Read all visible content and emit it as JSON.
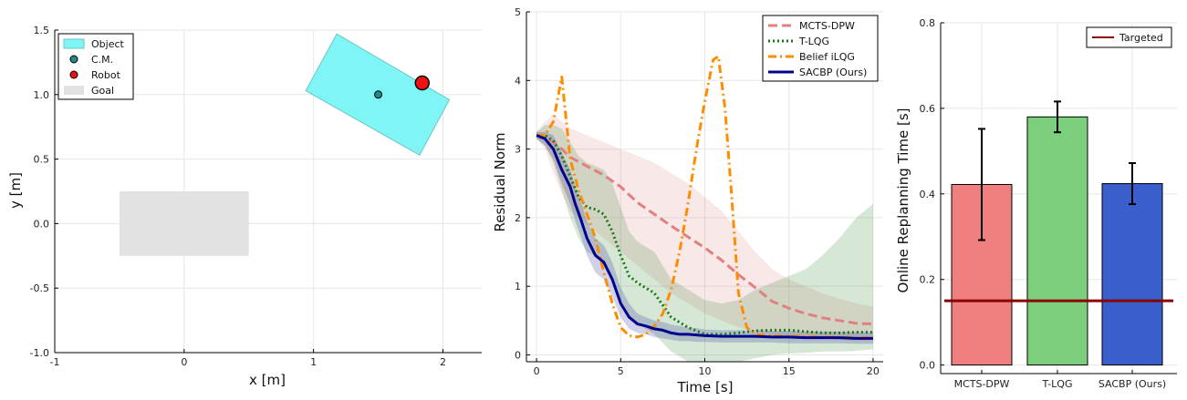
{
  "chart_data": [
    {
      "type": "scatter",
      "xlabel": "x [m]",
      "ylabel": "y [m]",
      "xlim": [
        -1,
        2.3
      ],
      "ylim": [
        -1.0,
        1.5
      ],
      "xticks": [
        -1,
        0,
        1,
        2
      ],
      "xtick_labels": [
        "-1",
        "0",
        "1",
        "2"
      ],
      "yticks": [
        -1.0,
        -0.5,
        0.0,
        0.5,
        1.0,
        1.5
      ],
      "ytick_labels": [
        "-1.0",
        "-0.5",
        "0.0",
        "0.5",
        "1.0",
        "1.5"
      ],
      "grid": true,
      "legend_position": "top-left",
      "legend": [
        "Object",
        "C.M.",
        "Robot",
        "Goal"
      ],
      "object_polygon": [
        [
          1.18,
          1.47
        ],
        [
          2.05,
          0.96
        ],
        [
          1.82,
          0.53
        ],
        [
          0.94,
          1.03
        ]
      ],
      "cm_point": [
        1.5,
        1.0
      ],
      "robot_point": [
        1.84,
        1.09
      ],
      "goal_rect": {
        "x": [
          -0.5,
          0.5
        ],
        "y": [
          -0.25,
          0.25
        ]
      },
      "colors": {
        "object": "#7ff5f5",
        "object_edge": "#6fc4c4",
        "cm": "#1f8a8a",
        "robot": "#ee1111",
        "goal": "#e2e2e2"
      }
    },
    {
      "type": "line",
      "xlabel": "Time [s]",
      "ylabel": "Residual Norm",
      "xlim": [
        -0.6,
        20.6
      ],
      "ylim": [
        -0.1,
        5
      ],
      "xticks": [
        0,
        5,
        10,
        15,
        20
      ],
      "xtick_labels": [
        "0",
        "5",
        "10",
        "15",
        "20"
      ],
      "yticks": [
        0,
        1,
        2,
        3,
        4,
        5
      ],
      "ytick_labels": [
        "0",
        "1",
        "2",
        "3",
        "4",
        "5"
      ],
      "grid": true,
      "legend_position": "top-right",
      "series": [
        {
          "name": "MCTS-DPW",
          "color": "#e08080",
          "dash": "dashed",
          "x": [
            0,
            0.5,
            1,
            1.5,
            2,
            3,
            4,
            5,
            6,
            7,
            8,
            9,
            10,
            11,
            12,
            13,
            14,
            15,
            16,
            17,
            18,
            19,
            20
          ],
          "y": [
            3.2,
            3.18,
            3.1,
            3.0,
            2.88,
            2.75,
            2.62,
            2.45,
            2.22,
            2.05,
            1.88,
            1.72,
            1.56,
            1.38,
            1.17,
            0.98,
            0.78,
            0.68,
            0.6,
            0.54,
            0.5,
            0.46,
            0.45
          ],
          "lower": [
            3.15,
            3.0,
            2.65,
            2.35,
            2.1,
            1.9,
            1.7,
            1.5,
            1.3,
            1.1,
            0.9,
            0.75,
            0.6,
            0.5,
            0.4,
            0.35,
            0.3,
            0.28,
            0.26,
            0.24,
            0.22,
            0.2,
            0.2
          ],
          "upper": [
            3.25,
            3.4,
            3.5,
            3.4,
            3.3,
            3.2,
            3.1,
            3.0,
            2.9,
            2.8,
            2.65,
            2.5,
            2.3,
            2.1,
            1.8,
            1.5,
            1.25,
            1.1,
            1.0,
            0.9,
            0.82,
            0.75,
            0.7
          ]
        },
        {
          "name": "T-LQG",
          "color": "#1a7a1a",
          "dash": "dotted",
          "x": [
            0,
            0.5,
            1,
            1.5,
            2,
            2.5,
            3,
            3.5,
            4,
            4.5,
            5,
            5.5,
            6,
            7,
            8,
            9,
            10,
            11,
            12,
            13,
            14,
            15,
            16,
            17,
            18,
            19,
            20
          ],
          "y": [
            3.2,
            3.2,
            3.12,
            2.9,
            2.6,
            2.3,
            2.15,
            2.12,
            2.05,
            1.8,
            1.45,
            1.15,
            1.05,
            0.9,
            0.55,
            0.4,
            0.3,
            0.3,
            0.32,
            0.35,
            0.36,
            0.36,
            0.34,
            0.32,
            0.32,
            0.33,
            0.33
          ],
          "lower": [
            3.15,
            3.05,
            2.8,
            2.4,
            2.0,
            1.7,
            1.5,
            1.45,
            1.35,
            1.1,
            0.8,
            0.55,
            0.45,
            0.3,
            0.05,
            -0.1,
            -0.1,
            -0.1,
            -0.1,
            -0.05,
            0.0,
            0.02,
            0.03,
            0.05,
            0.05,
            0.06,
            0.08
          ],
          "upper": [
            3.25,
            3.35,
            3.35,
            3.3,
            3.1,
            2.9,
            2.8,
            2.75,
            2.7,
            2.5,
            2.15,
            1.8,
            1.65,
            1.5,
            1.1,
            0.95,
            0.8,
            0.75,
            0.8,
            0.95,
            1.05,
            1.15,
            1.25,
            1.45,
            1.7,
            2.0,
            2.2
          ]
        },
        {
          "name": "Belief iLQG",
          "color": "#ff8c00",
          "dash": "dashdot",
          "x": [
            0,
            0.5,
            1,
            1.5,
            2,
            2.5,
            3,
            3.5,
            4,
            4.5,
            5,
            5.5,
            6,
            6.5,
            7,
            7.5,
            8,
            8.5,
            9,
            9.5,
            10,
            10.5,
            10.8,
            11.2,
            11.6,
            12,
            12.5,
            13,
            14,
            15,
            16,
            17,
            18,
            19,
            20
          ],
          "y": [
            3.2,
            3.2,
            3.4,
            4.05,
            2.85,
            2.4,
            2.05,
            1.7,
            1.2,
            0.75,
            0.4,
            0.28,
            0.26,
            0.3,
            0.42,
            0.6,
            0.95,
            1.5,
            2.2,
            3.0,
            3.7,
            4.3,
            4.35,
            3.6,
            2.3,
            0.9,
            0.4,
            0.3,
            0.28,
            0.27,
            0.27,
            0.26,
            0.26,
            0.25,
            0.25
          ]
        },
        {
          "name": "SACBP (Ours)",
          "color": "#00008b",
          "dash": "solid",
          "x": [
            0,
            0.5,
            1,
            1.5,
            2,
            2.3,
            2.6,
            3,
            3.5,
            4,
            4.5,
            5,
            5.5,
            6,
            6.5,
            7,
            7.5,
            8,
            8.5,
            9,
            9.5,
            10,
            11,
            12,
            13,
            14,
            15,
            16,
            17,
            18,
            19,
            20
          ],
          "y": [
            3.2,
            3.15,
            3.0,
            2.7,
            2.45,
            2.2,
            2.0,
            1.7,
            1.45,
            1.35,
            1.1,
            0.75,
            0.55,
            0.45,
            0.42,
            0.38,
            0.36,
            0.32,
            0.3,
            0.3,
            0.29,
            0.28,
            0.27,
            0.27,
            0.27,
            0.26,
            0.26,
            0.25,
            0.25,
            0.25,
            0.24,
            0.24
          ],
          "lower": [
            3.15,
            3.05,
            2.85,
            2.5,
            2.2,
            1.95,
            1.75,
            1.45,
            1.2,
            1.1,
            0.85,
            0.55,
            0.38,
            0.32,
            0.3,
            0.26,
            0.24,
            0.22,
            0.2,
            0.2,
            0.19,
            0.19,
            0.18,
            0.18,
            0.18,
            0.18,
            0.17,
            0.17,
            0.17,
            0.17,
            0.16,
            0.16
          ],
          "upper": [
            3.25,
            3.25,
            3.2,
            2.95,
            2.7,
            2.45,
            2.25,
            1.95,
            1.7,
            1.6,
            1.35,
            0.98,
            0.75,
            0.6,
            0.55,
            0.5,
            0.48,
            0.44,
            0.42,
            0.4,
            0.39,
            0.37,
            0.36,
            0.36,
            0.36,
            0.35,
            0.35,
            0.34,
            0.34,
            0.34,
            0.33,
            0.33
          ]
        }
      ]
    },
    {
      "type": "bar",
      "xlabel": "",
      "ylabel": "Online Replanning Time [s]",
      "categories": [
        "MCTS-DPW",
        "T-LQG",
        "SACBP (Ours)"
      ],
      "values": [
        0.422,
        0.58,
        0.424
      ],
      "errors": [
        0.13,
        0.036,
        0.048
      ],
      "bar_colors": [
        "#f08080",
        "#7ccf7c",
        "#3a5fcd"
      ],
      "ylim": [
        -0.02,
        0.8
      ],
      "yticks": [
        0.0,
        0.2,
        0.4,
        0.6,
        0.8
      ],
      "ytick_labels": [
        "0.0",
        "0.2",
        "0.4",
        "0.6",
        "0.8"
      ],
      "target_line": {
        "name": "Targeted",
        "value": 0.15,
        "color": "#8b0000"
      },
      "grid": true,
      "legend_position": "top-right"
    }
  ]
}
